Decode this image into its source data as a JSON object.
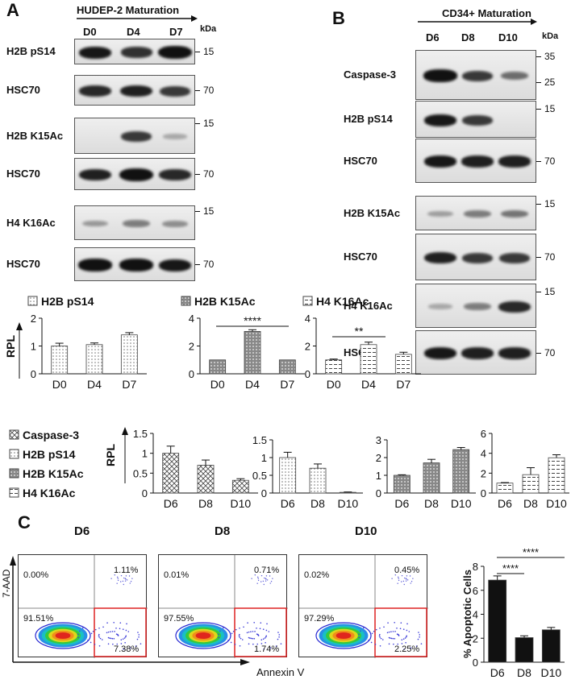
{
  "panelA": {
    "letter": "A",
    "header": "HUDEP-2 Maturation",
    "lanes": [
      "D0",
      "D4",
      "D7"
    ],
    "kda_label": "kDa",
    "blots": [
      {
        "label": "H2B pS14",
        "kda": "15",
        "bands": [
          0.9,
          0.75,
          1.0
        ]
      },
      {
        "label": "HSC70",
        "kda": "70",
        "bands": [
          0.8,
          0.85,
          0.7
        ]
      },
      {
        "label": "H2B K15Ac",
        "kda": "15",
        "bands": [
          0.0,
          0.7,
          0.05
        ]
      },
      {
        "label": "HSC70",
        "kda": "70",
        "bands": [
          0.85,
          1.0,
          0.8
        ]
      },
      {
        "label": "H4 K16Ac",
        "kda": "15",
        "bands": [
          0.15,
          0.3,
          0.2
        ]
      },
      {
        "label": "HSC70",
        "kda": "70",
        "bands": [
          0.95,
          0.95,
          0.9
        ]
      }
    ]
  },
  "panelB": {
    "letter": "B",
    "header": "CD34+ Maturation",
    "lanes": [
      "D6",
      "D8",
      "D10"
    ],
    "kda_label": "kDa",
    "blots": [
      {
        "label": "Caspase-3",
        "kda": [
          "35",
          "25"
        ],
        "bands": [
          0.95,
          0.7,
          0.4
        ]
      },
      {
        "label": "H2B pS14",
        "kda": [
          "15"
        ],
        "bands": [
          0.9,
          0.7,
          0.0
        ]
      },
      {
        "label": "HSC70",
        "kda": [
          "70"
        ],
        "bands": [
          0.9,
          0.85,
          0.85
        ]
      },
      {
        "label": "H2B K15Ac",
        "kda": [
          "15"
        ],
        "bands": [
          0.1,
          0.3,
          0.35
        ]
      },
      {
        "label": "HSC70",
        "kda": [
          "70"
        ],
        "bands": [
          0.85,
          0.7,
          0.7
        ]
      },
      {
        "label": "H4 K16Ac",
        "kda": [
          "15"
        ],
        "bands": [
          0.05,
          0.3,
          0.8
        ]
      },
      {
        "label": "HSC70",
        "kda": [
          "70"
        ],
        "bands": [
          0.9,
          0.85,
          0.85
        ]
      }
    ]
  },
  "panelC": {
    "letter": "C",
    "y_axis": "7-AAD",
    "x_axis": "Annexin V",
    "plots": [
      {
        "title": "D6",
        "ul": "0.00%",
        "ur": "1.11%",
        "ll": "91.51%",
        "lr": "7.38%"
      },
      {
        "title": "D8",
        "ul": "0.01%",
        "ur": "0.71%",
        "ll": "97.55%",
        "lr": "1.74%"
      },
      {
        "title": "D10",
        "ul": "0.02%",
        "ur": "0.45%",
        "ll": "97.29%",
        "lr": "2.25%"
      }
    ]
  },
  "chart_data": [
    {
      "type": "bar",
      "title": "H2B pS14",
      "ylabel": "RPL",
      "categories": [
        "D0",
        "D4",
        "D7"
      ],
      "values": [
        1.0,
        1.05,
        1.4
      ],
      "errors": [
        0.1,
        0.06,
        0.08
      ],
      "ylim": [
        0,
        2
      ],
      "yticks": [
        "0",
        "1",
        "2"
      ],
      "pattern": "dots-light"
    },
    {
      "type": "bar",
      "title": "H2B K15Ac",
      "categories": [
        "D0",
        "D4",
        "D7"
      ],
      "values": [
        1.0,
        3.05,
        1.0
      ],
      "errors": [
        0,
        0.12,
        0
      ],
      "ylim": [
        0,
        4
      ],
      "yticks": [
        "0",
        "2",
        "4"
      ],
      "pattern": "dots-dark",
      "annotation": "****"
    },
    {
      "type": "bar",
      "title": "H4 K16Ac",
      "categories": [
        "D0",
        "D4",
        "D7"
      ],
      "values": [
        1.0,
        2.1,
        1.4
      ],
      "errors": [
        0.06,
        0.18,
        0.15
      ],
      "ylim": [
        0,
        4
      ],
      "yticks": [
        "0",
        "2",
        "4"
      ],
      "pattern": "dashes",
      "annotation": "**"
    },
    {
      "type": "bar",
      "ylabel": "RPL",
      "legend": [
        "Caspase-3",
        "H2B pS14",
        "H2B K15Ac",
        "H4 K16Ac"
      ],
      "categories": [
        "D6",
        "D8",
        "D10"
      ],
      "values": [
        1.0,
        0.7,
        0.32
      ],
      "errors": [
        0.18,
        0.13,
        0.04
      ],
      "ylim": [
        0,
        1.5
      ],
      "yticks": [
        "0",
        "0.5",
        "1",
        "1.5"
      ],
      "pattern": "cross"
    },
    {
      "type": "bar",
      "categories": [
        "D6",
        "D8",
        "D10"
      ],
      "values": [
        1.0,
        0.7,
        0.02
      ],
      "errors": [
        0.15,
        0.12,
        0.01
      ],
      "ylim": [
        0,
        1.5
      ],
      "yticks": [
        "0",
        "0.5",
        "1",
        "1.5"
      ],
      "pattern": "dots-light"
    },
    {
      "type": "bar",
      "categories": [
        "D6",
        "D8",
        "D10"
      ],
      "values": [
        1.0,
        1.7,
        2.45
      ],
      "errors": [
        0.03,
        0.2,
        0.12
      ],
      "ylim": [
        0,
        3
      ],
      "yticks": [
        "0",
        "1",
        "2",
        "3"
      ],
      "pattern": "dots-dark"
    },
    {
      "type": "bar",
      "categories": [
        "D6",
        "D8",
        "D10"
      ],
      "values": [
        1.0,
        1.85,
        3.55
      ],
      "errors": [
        0.05,
        0.7,
        0.3
      ],
      "ylim": [
        0,
        6
      ],
      "yticks": [
        "0",
        "2",
        "4",
        "6"
      ],
      "pattern": "dashes"
    },
    {
      "type": "bar",
      "ylabel": "% Apoptotic Cells",
      "categories": [
        "D6",
        "D8",
        "D10"
      ],
      "values": [
        6.85,
        2.05,
        2.7
      ],
      "errors": [
        0.35,
        0.15,
        0.2
      ],
      "ylim": [
        0,
        8
      ],
      "yticks": [
        "0",
        "2",
        "4",
        "6",
        "8"
      ],
      "pattern": "solid",
      "annotations": [
        "****",
        "****"
      ]
    }
  ]
}
